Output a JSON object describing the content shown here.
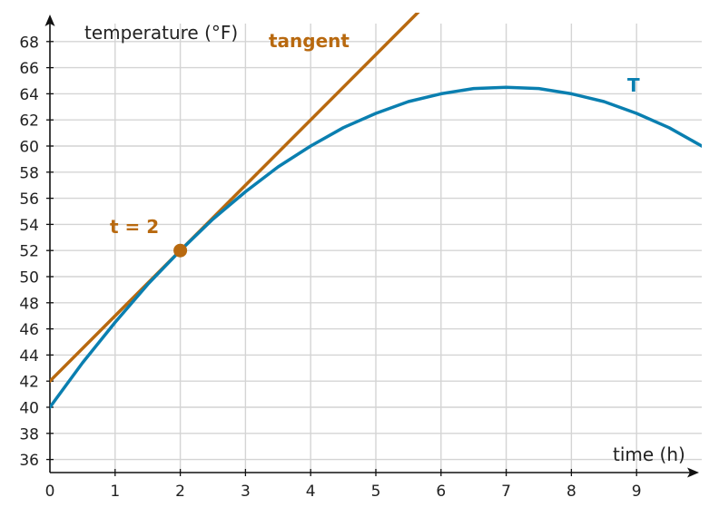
{
  "chart_data": {
    "type": "line",
    "xlabel": "time (h)",
    "ylabel": "temperature (°F)",
    "xlim": [
      0,
      10
    ],
    "ylim": [
      35,
      70
    ],
    "x_ticks": [
      0,
      1,
      2,
      3,
      4,
      5,
      6,
      7,
      8,
      9
    ],
    "y_ticks": [
      36,
      38,
      40,
      42,
      44,
      46,
      48,
      50,
      52,
      54,
      56,
      58,
      60,
      62,
      64,
      66,
      68
    ],
    "grid": true,
    "series": [
      {
        "name": "T",
        "color": "#0a7fb0",
        "x": [
          0,
          0.5,
          1,
          1.5,
          2,
          2.5,
          3,
          3.5,
          4,
          4.5,
          5,
          5.5,
          6,
          6.5,
          7,
          7.5,
          8,
          8.5,
          9,
          9.5,
          10
        ],
        "y": [
          40.0,
          43.4,
          46.5,
          49.4,
          52.0,
          54.4,
          56.5,
          58.4,
          60.0,
          61.4,
          62.5,
          63.4,
          64.0,
          64.4,
          64.5,
          64.4,
          64.0,
          63.4,
          62.5,
          61.4,
          60.0
        ]
      },
      {
        "name": "tangent",
        "color": "#b8690f",
        "x": [
          0,
          5.7
        ],
        "y": [
          42.0,
          70.5
        ]
      }
    ],
    "point": {
      "label": "t = 2",
      "x": 2,
      "y": 52,
      "color": "#b8690f"
    }
  }
}
